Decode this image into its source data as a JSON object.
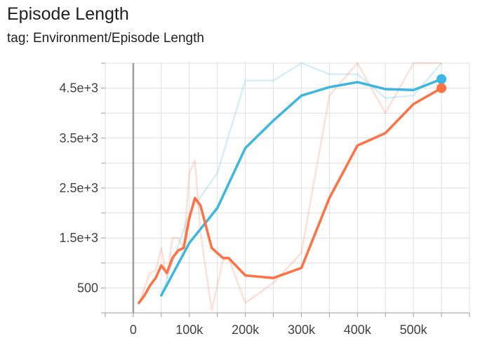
{
  "header": {
    "title": "Episode Length",
    "subtitle": "tag: Environment/Episode Length"
  },
  "chart_data": {
    "type": "line",
    "title": "Episode Length",
    "subtitle": "tag: Environment/Episode Length",
    "xlabel": "",
    "ylabel": "",
    "xlim": [
      -50000,
      600000
    ],
    "ylim": [
      0,
      5000
    ],
    "x_ticks": [
      0,
      100000,
      200000,
      300000,
      400000,
      500000
    ],
    "x_tick_labels": [
      "0",
      "100k",
      "200k",
      "300k",
      "400k",
      "500k"
    ],
    "y_ticks": [
      500,
      1500,
      2500,
      3500,
      4500
    ],
    "y_tick_labels": [
      "500",
      "1.5e+3",
      "2.5e+3",
      "3.5e+3",
      "4.5e+3"
    ],
    "grid": true,
    "legend": "none",
    "colors": {
      "blue": "#3cb6e3",
      "orange": "#ff7043"
    },
    "series": [
      {
        "color": "#3cb6e3",
        "smoothed": {
          "x": [
            50000,
            100000,
            150000,
            200000,
            250000,
            300000,
            350000,
            400000,
            450000,
            500000,
            550000
          ],
          "y": [
            350,
            1400,
            2100,
            3300,
            3850,
            4350,
            4520,
            4620,
            4480,
            4460,
            4680
          ]
        },
        "raw": {
          "x": [
            50000,
            100000,
            150000,
            200000,
            250000,
            300000,
            350000,
            400000,
            450000,
            500000,
            550000
          ],
          "y": [
            350,
            2000,
            2800,
            4650,
            4650,
            5000,
            4780,
            4780,
            4300,
            4350,
            5000
          ]
        }
      },
      {
        "color": "#ff7043",
        "smoothed": {
          "x": [
            10000,
            20000,
            30000,
            40000,
            50000,
            60000,
            70000,
            80000,
            90000,
            100000,
            110000,
            120000,
            140000,
            160000,
            170000,
            200000,
            250000,
            300000,
            350000,
            400000,
            450000,
            500000,
            550000
          ],
          "y": [
            200,
            350,
            550,
            700,
            950,
            800,
            1100,
            1250,
            1300,
            1900,
            2300,
            2150,
            1300,
            1100,
            1100,
            750,
            700,
            900,
            2300,
            3350,
            3600,
            4180,
            4500
          ]
        },
        "raw": {
          "x": [
            10000,
            20000,
            30000,
            40000,
            50000,
            60000,
            70000,
            80000,
            90000,
            100000,
            110000,
            120000,
            140000,
            160000,
            170000,
            200000,
            250000,
            300000,
            350000,
            400000,
            450000,
            500000,
            550000
          ],
          "y": [
            200,
            500,
            800,
            850,
            1300,
            700,
            1500,
            1500,
            1300,
            2800,
            3050,
            1600,
            50,
            1050,
            1100,
            200,
            600,
            1200,
            4350,
            5000,
            4000,
            5000,
            5000
          ]
        }
      }
    ]
  }
}
